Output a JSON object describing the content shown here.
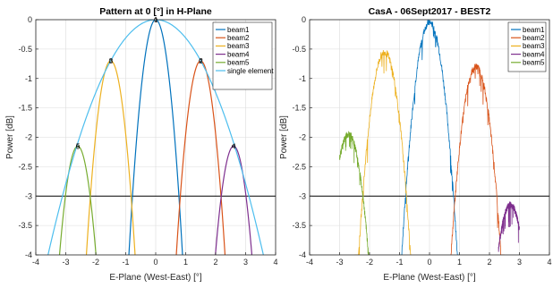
{
  "chart_data": [
    {
      "type": "line",
      "title": "Pattern at 0 [°] in H-Plane",
      "xlabel": "E-Plane (West-East) [°]",
      "ylabel": "Power [dB]",
      "xlim": [
        -4,
        4
      ],
      "ylim": [
        -4,
        0
      ],
      "xticks": [
        "-4",
        "-3",
        "-2",
        "-1",
        "0",
        "1",
        "2",
        "3",
        "4"
      ],
      "yticks": [
        "0",
        "-0.5",
        "-1",
        "-1.5",
        "-2",
        "-2.5",
        "-3",
        "-3.5",
        "-4"
      ],
      "grid": true,
      "legend_position": "top-right",
      "reference_line": -3,
      "series": [
        {
          "name": "beam1",
          "color": "#0072BD",
          "center": 0.0,
          "peak": 0.0,
          "curvature": 5.0
        },
        {
          "name": "beam2",
          "color": "#D95319",
          "center": 1.5,
          "peak": -0.7,
          "curvature": 5.0
        },
        {
          "name": "beam3",
          "color": "#EDB120",
          "center": -1.5,
          "peak": -0.7,
          "curvature": 5.0
        },
        {
          "name": "beam4",
          "color": "#7E2F8E",
          "center": 2.6,
          "peak": -2.15,
          "curvature": 5.0
        },
        {
          "name": "beam5",
          "color": "#77AC30",
          "center": -2.6,
          "peak": -2.15,
          "curvature": 5.0
        },
        {
          "name": "single element",
          "color": "#4DBEEE",
          "center": 0.0,
          "peak": 0.0,
          "curvature": 0.31
        }
      ],
      "annotations": [
        {
          "text": "1",
          "x": 0.0,
          "y": 0.0
        },
        {
          "text": "2",
          "x": 1.5,
          "y": -0.7
        },
        {
          "text": "3",
          "x": -1.5,
          "y": -0.7
        },
        {
          "text": "4",
          "x": 2.6,
          "y": -2.15
        },
        {
          "text": "5",
          "x": -2.6,
          "y": -2.15
        }
      ]
    },
    {
      "type": "line",
      "title": "CasA - 06Sept2017 - BEST2",
      "xlabel": "E-Plane (West-East) [°]",
      "ylabel": "Power [dB]",
      "xlim": [
        -4,
        4
      ],
      "ylim": [
        -4,
        0
      ],
      "xticks": [
        "-4",
        "-3",
        "-2",
        "-1",
        "0",
        "1",
        "2",
        "3",
        "4"
      ],
      "yticks": [
        "0",
        "-0.5",
        "-1",
        "-1.5",
        "-2",
        "-2.5",
        "-3",
        "-3.5",
        "-4"
      ],
      "grid": true,
      "legend_position": "top-right",
      "reference_line": -3,
      "series": [
        {
          "name": "beam1",
          "color": "#0072BD",
          "center": 0.0,
          "peak": -0.05,
          "curvature": 4.6,
          "xrange": [
            -1.0,
            1.0
          ]
        },
        {
          "name": "beam2",
          "color": "#D95319",
          "center": 1.55,
          "peak": -0.8,
          "curvature": 4.6,
          "xrange": [
            0.7,
            2.5
          ]
        },
        {
          "name": "beam3",
          "color": "#EDB120",
          "center": -1.5,
          "peak": -0.55,
          "curvature": 4.6,
          "xrange": [
            -2.5,
            -0.6
          ]
        },
        {
          "name": "beam4",
          "color": "#7E2F8E",
          "center": 2.7,
          "peak": -3.15,
          "curvature": 4.6,
          "xrange": [
            2.3,
            3.0
          ]
        },
        {
          "name": "beam5",
          "color": "#77AC30",
          "center": -2.7,
          "peak": -1.95,
          "curvature": 4.6,
          "xrange": [
            -3.0,
            -2.0
          ]
        }
      ]
    }
  ]
}
